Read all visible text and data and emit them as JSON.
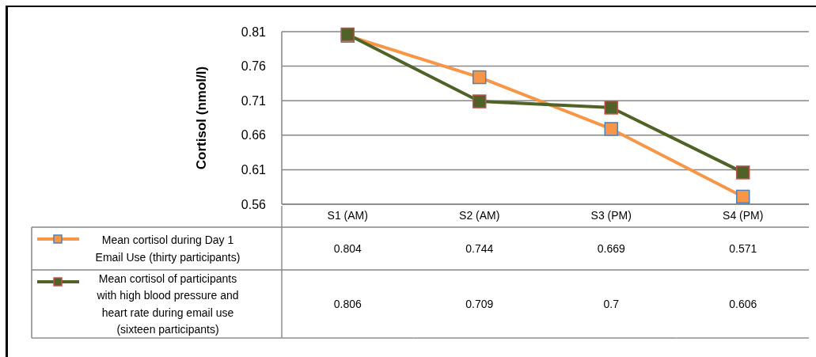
{
  "chart_data": {
    "type": "line",
    "ylabel": "Cortisol (nmol/l)",
    "categories": [
      "S1 (AM)",
      "S2 (AM)",
      "S3 (PM)",
      "S4 (PM)"
    ],
    "series": [
      {
        "name": "Mean cortisol during Day 1 Email Use (thirty participants)",
        "color": "#f79646",
        "values": [
          0.804,
          0.744,
          0.669,
          0.571
        ]
      },
      {
        "name": "Mean cortisol of participants with high blood pressure and heart rate during email use (sixteen participants)",
        "color": "#4f6228",
        "values": [
          0.806,
          0.709,
          0.7,
          0.606
        ]
      }
    ],
    "ylim": [
      0.56,
      0.81
    ],
    "yticks": [
      0.56,
      0.61,
      0.66,
      0.71,
      0.76,
      0.81
    ],
    "grid": "y",
    "legend": "bottom",
    "data_labels": true,
    "marker": "square",
    "line_style": "solid"
  }
}
